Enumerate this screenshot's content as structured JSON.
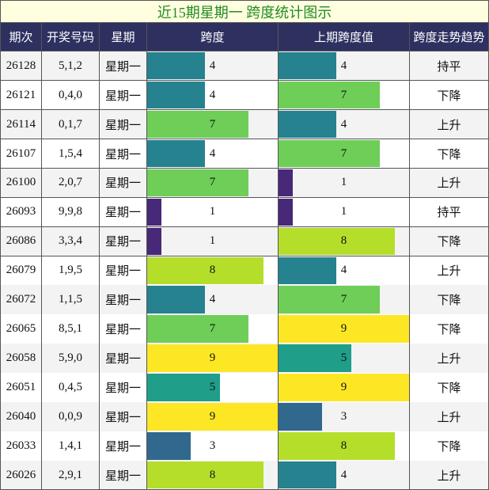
{
  "title": "近15期星期一 跨度统计图示",
  "header": [
    "期次",
    "开奖号码",
    "星期",
    "跨度",
    "上期跨度值",
    "跨度走势趋势"
  ],
  "span_lim": [
    0,
    9
  ],
  "colors": {
    "1": "#482878",
    "3": "#31688e",
    "4": "#26828e",
    "5": "#1f9e89",
    "7": "#6ece58",
    "8": "#b5de2b",
    "9": "#fde725"
  },
  "rows": [
    {
      "period": "26128",
      "numbers": "5,1,2",
      "weekday": "星期一",
      "span": 4,
      "prev_span": 4,
      "trend": "持平"
    },
    {
      "period": "26121",
      "numbers": "0,4,0",
      "weekday": "星期一",
      "span": 4,
      "prev_span": 7,
      "trend": "下降"
    },
    {
      "period": "26114",
      "numbers": "0,1,7",
      "weekday": "星期一",
      "span": 7,
      "prev_span": 4,
      "trend": "上升"
    },
    {
      "period": "26107",
      "numbers": "1,5,4",
      "weekday": "星期一",
      "span": 4,
      "prev_span": 7,
      "trend": "下降"
    },
    {
      "period": "26100",
      "numbers": "2,0,7",
      "weekday": "星期一",
      "span": 7,
      "prev_span": 1,
      "trend": "上升"
    },
    {
      "period": "26093",
      "numbers": "9,9,8",
      "weekday": "星期一",
      "span": 1,
      "prev_span": 1,
      "trend": "持平"
    },
    {
      "period": "26086",
      "numbers": "3,3,4",
      "weekday": "星期一",
      "span": 1,
      "prev_span": 8,
      "trend": "下降"
    },
    {
      "period": "26079",
      "numbers": "1,9,5",
      "weekday": "星期一",
      "span": 8,
      "prev_span": 4,
      "trend": "上升"
    },
    {
      "period": "26072",
      "numbers": "1,1,5",
      "weekday": "星期一",
      "span": 4,
      "prev_span": 7,
      "trend": "下降"
    },
    {
      "period": "26065",
      "numbers": "8,5,1",
      "weekday": "星期一",
      "span": 7,
      "prev_span": 9,
      "trend": "下降"
    },
    {
      "period": "26058",
      "numbers": "5,9,0",
      "weekday": "星期一",
      "span": 9,
      "prev_span": 5,
      "trend": "上升"
    },
    {
      "period": "26051",
      "numbers": "0,4,5",
      "weekday": "星期一",
      "span": 5,
      "prev_span": 9,
      "trend": "下降"
    },
    {
      "period": "26040",
      "numbers": "0,0,9",
      "weekday": "星期一",
      "span": 9,
      "prev_span": 3,
      "trend": "上升"
    },
    {
      "period": "26033",
      "numbers": "1,4,1",
      "weekday": "星期一",
      "span": 3,
      "prev_span": 8,
      "trend": "下降"
    },
    {
      "period": "26026",
      "numbers": "2,9,1",
      "weekday": "星期一",
      "span": 8,
      "prev_span": 4,
      "trend": "上升"
    }
  ]
}
